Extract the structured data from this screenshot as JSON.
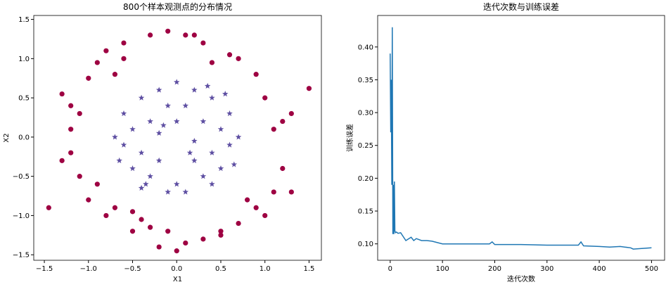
{
  "chart_data": [
    {
      "type": "scatter",
      "title": "800个样本观测点的分布情况",
      "xlabel": "X1",
      "ylabel": "X2",
      "xlim": [
        -1.62,
        1.64
      ],
      "ylim": [
        -1.57,
        1.55
      ],
      "xticks": [
        {
          "value": -1.5,
          "label": "−1.5"
        },
        {
          "value": -1.0,
          "label": "−1.0"
        },
        {
          "value": -0.5,
          "label": "−0.5"
        },
        {
          "value": 0,
          "label": "0.0"
        },
        {
          "value": 0.5,
          "label": "0.5"
        },
        {
          "value": 1.0,
          "label": "1.0"
        },
        {
          "value": 1.5,
          "label": "1.5"
        }
      ],
      "yticks": [
        {
          "value": -1.5,
          "label": "−1.5"
        },
        {
          "value": -1.0,
          "label": "−1.0"
        },
        {
          "value": -0.5,
          "label": "−0.5"
        },
        {
          "value": 0,
          "label": "0.0"
        },
        {
          "value": 0.5,
          "label": "0.5"
        },
        {
          "value": 1.0,
          "label": "1.0"
        },
        {
          "value": 1.5,
          "label": "1.5"
        }
      ],
      "series": [
        {
          "marker": "o",
          "color": "#9e0142",
          "x": [
            -1.45,
            -1.3,
            -1.2,
            -1.1,
            -1.0,
            -0.9,
            -0.8,
            -0.7,
            -0.6,
            -0.5,
            -0.3,
            -0.1,
            0.1,
            0.3,
            0.5,
            0.7,
            0.9,
            1.0,
            1.1,
            1.2,
            1.3,
            1.5,
            1.3,
            1.1,
            0.9,
            0.7,
            0.5,
            0.3,
            0.1,
            -0.1,
            -0.3,
            -0.5,
            -0.7,
            -0.9,
            -1.1,
            -1.2,
            -1.3,
            -0.2,
            0.0,
            0.2,
            -0.8,
            0.8,
            1.0,
            -1.0,
            0.6,
            -0.6,
            0.4,
            -0.4,
            1.2,
            -1.2
          ],
          "y": [
            -0.9,
            0.55,
            0.1,
            -0.5,
            0.75,
            0.95,
            1.1,
            -0.9,
            1.2,
            -1.2,
            1.3,
            1.35,
            1.3,
            1.2,
            -1.2,
            1.0,
            0.8,
            0.5,
            0.1,
            -0.4,
            -0.7,
            0.62,
            0.3,
            -0.7,
            -0.9,
            -1.1,
            -1.25,
            -1.3,
            -1.35,
            -1.2,
            -1.15,
            -0.95,
            0.8,
            -0.6,
            0.3,
            -0.2,
            -0.3,
            -1.4,
            -1.45,
            1.3,
            -1.0,
            -0.8,
            -1.0,
            -0.8,
            1.05,
            1.0,
            0.95,
            -1.05,
            0.2,
            0.4
          ]
        },
        {
          "marker": "*",
          "color": "#5e4fa2",
          "x": [
            -0.6,
            -0.4,
            -0.2,
            0,
            0.2,
            0.4,
            0.6,
            -0.5,
            -0.3,
            -0.1,
            0.1,
            0.3,
            0.5,
            -0.6,
            -0.4,
            -0.2,
            0.2,
            0.4,
            0.6,
            -0.5,
            -0.3,
            0,
            0.3,
            0.5,
            -0.4,
            -0.1,
            0.1,
            0.4,
            -0.2,
            0.2,
            0.7,
            -0.7,
            0.65,
            -0.65,
            0,
            0.15,
            -0.15,
            0.35,
            -0.35,
            0.55
          ],
          "y": [
            0.3,
            0.5,
            0.6,
            0.7,
            0.6,
            0.5,
            0.3,
            0.1,
            0.2,
            0.4,
            0.4,
            0.2,
            0.1,
            -0.1,
            -0.2,
            -0.3,
            -0.3,
            -0.2,
            -0.1,
            -0.4,
            -0.5,
            -0.6,
            -0.5,
            -0.4,
            -0.65,
            -0.7,
            -0.7,
            -0.6,
            0.05,
            -0.05,
            0.0,
            0.0,
            -0.35,
            -0.3,
            0.2,
            -0.2,
            0.15,
            0.65,
            -0.6,
            0.55
          ]
        }
      ]
    },
    {
      "type": "line",
      "title": "迭代次数与训练误差",
      "xlabel": "迭代次数",
      "ylabel": "训练误差",
      "xlim": [
        -24,
        525
      ],
      "ylim": [
        0.075,
        0.448
      ],
      "xticks": [
        0,
        100,
        200,
        300,
        400,
        500
      ],
      "yticks": [
        {
          "value": 0.1,
          "label": "0.10"
        },
        {
          "value": 0.15,
          "label": "0.15"
        },
        {
          "value": 0.2,
          "label": "0.20"
        },
        {
          "value": 0.25,
          "label": "0.25"
        },
        {
          "value": 0.3,
          "label": "0.30"
        },
        {
          "value": 0.35,
          "label": "0.35"
        },
        {
          "value": 0.4,
          "label": "0.40"
        }
      ],
      "series": [
        {
          "color": "#1f77b4",
          "x": [
            0,
            1,
            2,
            3,
            4,
            5,
            6,
            7,
            8,
            9,
            10,
            12,
            15,
            20,
            30,
            40,
            45,
            50,
            60,
            70,
            80,
            100,
            120,
            150,
            190,
            195,
            200,
            250,
            300,
            360,
            365,
            370,
            400,
            420,
            440,
            460,
            465,
            500
          ],
          "y": [
            0.39,
            0.27,
            0.35,
            0.19,
            0.43,
            0.115,
            0.19,
            0.115,
            0.195,
            0.12,
            0.117,
            0.118,
            0.116,
            0.117,
            0.105,
            0.11,
            0.105,
            0.108,
            0.105,
            0.105,
            0.104,
            0.1,
            0.1,
            0.1,
            0.1,
            0.103,
            0.099,
            0.099,
            0.098,
            0.098,
            0.103,
            0.097,
            0.096,
            0.095,
            0.096,
            0.094,
            0.092,
            0.094
          ]
        }
      ]
    }
  ]
}
